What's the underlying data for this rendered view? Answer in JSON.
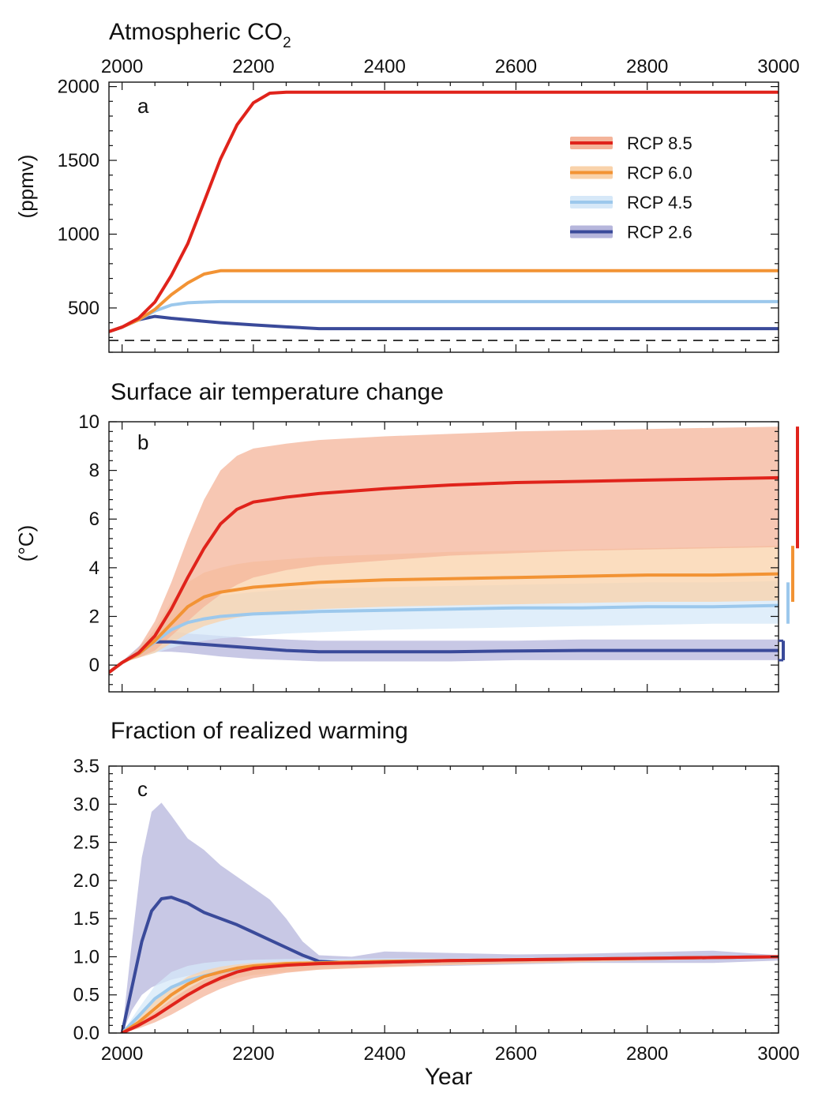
{
  "figure": {
    "xlabel": "Year",
    "x_ticks": [
      2000,
      2200,
      2400,
      2600,
      2800,
      3000
    ],
    "xlim": [
      1980,
      3000
    ]
  },
  "legend": {
    "placement": "top-right of panel a",
    "entries": [
      {
        "label": "RCP 8.5",
        "color": "#e0231b",
        "band_color": "#f4b49a"
      },
      {
        "label": "RCP 6.0",
        "color": "#f29334",
        "band_color": "#f9d2aa"
      },
      {
        "label": "RCP 4.5",
        "color": "#9cc8ec",
        "band_color": "#d6e8f8"
      },
      {
        "label": "RCP 2.6",
        "color": "#3a4a9a",
        "band_color": "#b6b6dc"
      }
    ]
  },
  "panels": [
    {
      "letter": "a",
      "title": "Atmospheric CO",
      "title_sub": "2",
      "ylabel": "(ppmv)"
    },
    {
      "letter": "b",
      "title": "Surface air temperature change",
      "ylabel": "(°C)"
    },
    {
      "letter": "c",
      "title": "Fraction of realized warming",
      "ylabel": ""
    }
  ],
  "chart_data": [
    {
      "type": "line",
      "title": "Atmospheric CO2",
      "ylabel": "(ppmv)",
      "xlim": [
        1980,
        3000
      ],
      "ylim": [
        200,
        2030
      ],
      "y_ticks": [
        500,
        1000,
        1500,
        2000
      ],
      "x_ticks_top": [
        2000,
        2200,
        2400,
        2600,
        2800,
        3000
      ],
      "reference_line": {
        "y": 280,
        "style": "dashed"
      },
      "series": [
        {
          "name": "RCP 8.5",
          "x": [
            1980,
            2000,
            2025,
            2050,
            2075,
            2100,
            2125,
            2150,
            2175,
            2200,
            2225,
            2250,
            2400,
            2600,
            2800,
            3000
          ],
          "y": [
            340,
            370,
            430,
            540,
            720,
            935,
            1220,
            1510,
            1740,
            1890,
            1955,
            1962,
            1962,
            1962,
            1962,
            1962
          ]
        },
        {
          "name": "RCP 6.0",
          "x": [
            1980,
            2000,
            2025,
            2050,
            2075,
            2100,
            2125,
            2150,
            2175,
            2200,
            2400,
            2600,
            2800,
            3000
          ],
          "y": [
            340,
            370,
            420,
            490,
            590,
            670,
            730,
            752,
            752,
            752,
            752,
            752,
            752,
            752
          ]
        },
        {
          "name": "RCP 4.5",
          "x": [
            1980,
            2000,
            2025,
            2050,
            2075,
            2100,
            2125,
            2150,
            2200,
            2400,
            2600,
            2800,
            3000
          ],
          "y": [
            340,
            370,
            420,
            480,
            520,
            535,
            540,
            543,
            543,
            543,
            543,
            543,
            543
          ]
        },
        {
          "name": "RCP 2.6",
          "x": [
            1980,
            2000,
            2025,
            2050,
            2075,
            2100,
            2150,
            2200,
            2250,
            2300,
            2400,
            2600,
            2800,
            3000
          ],
          "y": [
            340,
            370,
            420,
            443,
            430,
            420,
            400,
            385,
            372,
            360,
            360,
            360,
            360,
            360
          ]
        }
      ]
    },
    {
      "type": "line",
      "title": "Surface air temperature change",
      "ylabel": "(°C)",
      "xlim": [
        1980,
        3000
      ],
      "ylim": [
        -1.1,
        10
      ],
      "y_ticks": [
        0,
        2,
        4,
        6,
        8,
        10
      ],
      "series": [
        {
          "name": "RCP 8.5",
          "x": [
            1980,
            2000,
            2025,
            2050,
            2075,
            2100,
            2125,
            2150,
            2175,
            2200,
            2250,
            2300,
            2400,
            2500,
            2600,
            2700,
            2800,
            2900,
            3000
          ],
          "y": [
            -0.3,
            0.1,
            0.5,
            1.2,
            2.3,
            3.6,
            4.8,
            5.8,
            6.4,
            6.7,
            6.9,
            7.05,
            7.25,
            7.4,
            7.5,
            7.55,
            7.6,
            7.65,
            7.7
          ],
          "low": [
            -0.3,
            0.1,
            0.3,
            0.6,
            1.2,
            1.8,
            2.4,
            2.9,
            3.3,
            3.6,
            3.9,
            4.1,
            4.3,
            4.5,
            4.6,
            4.7,
            4.75,
            4.8,
            4.85
          ],
          "high": [
            -0.3,
            0.15,
            0.7,
            1.8,
            3.4,
            5.2,
            6.8,
            8.0,
            8.6,
            8.9,
            9.1,
            9.25,
            9.4,
            9.5,
            9.6,
            9.65,
            9.7,
            9.75,
            9.8
          ]
        },
        {
          "name": "RCP 6.0",
          "x": [
            1980,
            2000,
            2025,
            2050,
            2075,
            2100,
            2125,
            2150,
            2175,
            2200,
            2250,
            2300,
            2400,
            2500,
            2600,
            2700,
            2800,
            2900,
            3000
          ],
          "y": [
            -0.3,
            0.1,
            0.45,
            1.0,
            1.7,
            2.4,
            2.8,
            3.0,
            3.1,
            3.2,
            3.3,
            3.4,
            3.5,
            3.55,
            3.6,
            3.65,
            3.7,
            3.7,
            3.75
          ],
          "low": [
            -0.3,
            0.1,
            0.3,
            0.5,
            0.9,
            1.3,
            1.6,
            1.8,
            1.95,
            2.05,
            2.2,
            2.3,
            2.4,
            2.45,
            2.5,
            2.55,
            2.6,
            2.6,
            2.65
          ],
          "high": [
            -0.3,
            0.15,
            0.6,
            1.5,
            2.6,
            3.4,
            3.8,
            4.0,
            4.15,
            4.25,
            4.35,
            4.45,
            4.55,
            4.65,
            4.7,
            4.75,
            4.8,
            4.85,
            4.9
          ]
        },
        {
          "name": "RCP 4.5",
          "x": [
            1980,
            2000,
            2025,
            2050,
            2075,
            2100,
            2125,
            2150,
            2200,
            2250,
            2300,
            2400,
            2500,
            2600,
            2700,
            2800,
            2900,
            3000
          ],
          "y": [
            -0.3,
            0.1,
            0.45,
            0.95,
            1.45,
            1.75,
            1.9,
            2.0,
            2.1,
            2.15,
            2.2,
            2.25,
            2.3,
            2.35,
            2.35,
            2.4,
            2.4,
            2.45
          ],
          "low": [
            -0.3,
            0.1,
            0.3,
            0.5,
            0.7,
            0.9,
            1.0,
            1.1,
            1.2,
            1.3,
            1.35,
            1.45,
            1.5,
            1.55,
            1.6,
            1.65,
            1.7,
            1.7
          ],
          "high": [
            -0.3,
            0.15,
            0.6,
            1.3,
            2.0,
            2.45,
            2.7,
            2.85,
            3.0,
            3.1,
            3.15,
            3.2,
            3.25,
            3.3,
            3.35,
            3.4,
            3.4,
            3.45
          ]
        },
        {
          "name": "RCP 2.6",
          "x": [
            1980,
            2000,
            2025,
            2050,
            2075,
            2100,
            2150,
            2200,
            2250,
            2300,
            2400,
            2500,
            2600,
            2700,
            2800,
            2900,
            3000
          ],
          "y": [
            -0.3,
            0.1,
            0.5,
            0.95,
            0.95,
            0.9,
            0.8,
            0.7,
            0.6,
            0.55,
            0.55,
            0.55,
            0.58,
            0.6,
            0.6,
            0.6,
            0.6
          ],
          "low": [
            -0.3,
            0.1,
            0.3,
            0.55,
            0.55,
            0.5,
            0.35,
            0.25,
            0.2,
            0.15,
            0.15,
            0.15,
            0.2,
            0.2,
            0.2,
            0.2,
            0.2
          ],
          "high": [
            -0.3,
            0.15,
            0.75,
            1.4,
            1.4,
            1.3,
            1.2,
            1.1,
            1.05,
            1.0,
            1.0,
            1.0,
            1.0,
            1.05,
            1.05,
            1.05,
            1.05
          ]
        }
      ],
      "range_bars": [
        {
          "name": "RCP 8.5",
          "low": 4.8,
          "high": 9.8
        },
        {
          "name": "RCP 6.0",
          "low": 2.6,
          "high": 4.9
        },
        {
          "name": "RCP 4.5",
          "low": 1.7,
          "high": 3.4
        },
        {
          "name": "RCP 2.6",
          "low": 0.2,
          "high": 1.0
        }
      ]
    },
    {
      "type": "line",
      "title": "Fraction of realized warming",
      "xlabel": "Year",
      "xlim": [
        1980,
        3000
      ],
      "ylim": [
        0,
        3.5
      ],
      "y_ticks": [
        0.0,
        0.5,
        1.0,
        1.5,
        2.0,
        2.5,
        3.0,
        3.5
      ],
      "series": [
        {
          "name": "RCP 8.5",
          "x": [
            2000,
            2025,
            2050,
            2075,
            2100,
            2125,
            2150,
            2175,
            2200,
            2250,
            2300,
            2400,
            2500,
            2600,
            2700,
            2800,
            2900,
            3000
          ],
          "y": [
            0.0,
            0.1,
            0.22,
            0.36,
            0.5,
            0.62,
            0.72,
            0.8,
            0.85,
            0.89,
            0.91,
            0.93,
            0.95,
            0.96,
            0.97,
            0.98,
            0.99,
            1.0
          ],
          "low": [
            0.0,
            0.06,
            0.14,
            0.24,
            0.36,
            0.48,
            0.58,
            0.66,
            0.72,
            0.79,
            0.83,
            0.87,
            0.9,
            0.92,
            0.94,
            0.96,
            0.97,
            0.98
          ],
          "high": [
            0.0,
            0.13,
            0.28,
            0.44,
            0.58,
            0.7,
            0.79,
            0.85,
            0.9,
            0.93,
            0.94,
            0.95,
            0.96,
            0.97,
            0.98,
            0.99,
            1.0,
            1.0
          ]
        },
        {
          "name": "RCP 6.0",
          "x": [
            2000,
            2025,
            2050,
            2075,
            2100,
            2125,
            2150,
            2175,
            2200,
            2250,
            2300,
            2400,
            2500,
            2600,
            2700,
            2800,
            2900,
            3000
          ],
          "y": [
            0.0,
            0.14,
            0.32,
            0.5,
            0.64,
            0.74,
            0.8,
            0.85,
            0.88,
            0.91,
            0.92,
            0.94,
            0.95,
            0.96,
            0.97,
            0.98,
            0.99,
            1.0
          ],
          "low": [
            0.0,
            0.09,
            0.22,
            0.37,
            0.5,
            0.6,
            0.67,
            0.72,
            0.76,
            0.8,
            0.83,
            0.86,
            0.89,
            0.91,
            0.93,
            0.95,
            0.97,
            0.98
          ],
          "high": [
            0.0,
            0.2,
            0.42,
            0.6,
            0.74,
            0.82,
            0.87,
            0.9,
            0.92,
            0.94,
            0.95,
            0.96,
            0.97,
            0.98,
            0.98,
            0.99,
            1.0,
            1.0
          ]
        },
        {
          "name": "RCP 4.5",
          "x": [
            2000,
            2025,
            2050,
            2075,
            2100,
            2125,
            2150,
            2175,
            2200,
            2250,
            2300,
            2400,
            2500,
            2600,
            2700,
            2800,
            2900,
            3000
          ],
          "y": [
            0.0,
            0.22,
            0.45,
            0.6,
            0.69,
            0.75,
            0.8,
            0.84,
            0.87,
            0.9,
            0.92,
            0.94,
            0.95,
            0.96,
            0.97,
            0.98,
            0.99,
            1.0
          ],
          "low": [
            0.0,
            0.14,
            0.3,
            0.44,
            0.55,
            0.63,
            0.69,
            0.74,
            0.78,
            0.83,
            0.86,
            0.89,
            0.91,
            0.93,
            0.95,
            0.96,
            0.98,
            0.99
          ],
          "high": [
            0.0,
            0.32,
            0.62,
            0.8,
            0.88,
            0.92,
            0.94,
            0.95,
            0.96,
            0.97,
            0.97,
            0.98,
            0.98,
            0.99,
            0.99,
            1.0,
            1.0,
            1.0
          ]
        },
        {
          "name": "RCP 2.6",
          "x": [
            2000,
            2015,
            2030,
            2045,
            2060,
            2075,
            2100,
            2125,
            2150,
            2175,
            2200,
            2225,
            2250,
            2275,
            2300,
            2350,
            2400,
            2500,
            2600,
            2700,
            2800,
            2900,
            3000
          ],
          "y": [
            0.0,
            0.6,
            1.2,
            1.6,
            1.76,
            1.78,
            1.7,
            1.58,
            1.5,
            1.42,
            1.32,
            1.22,
            1.12,
            1.02,
            0.94,
            0.92,
            0.93,
            0.95,
            0.96,
            0.97,
            0.98,
            0.99,
            1.0
          ],
          "low": [
            0.0,
            0.3,
            0.5,
            0.6,
            0.65,
            0.7,
            0.75,
            0.78,
            0.8,
            0.82,
            0.84,
            0.85,
            0.86,
            0.86,
            0.87,
            0.86,
            0.87,
            0.88,
            0.9,
            0.92,
            0.92,
            0.92,
            0.95
          ],
          "high": [
            0.0,
            1.2,
            2.3,
            2.9,
            3.02,
            2.85,
            2.55,
            2.4,
            2.2,
            2.05,
            1.9,
            1.75,
            1.5,
            1.2,
            1.02,
            1.0,
            1.07,
            1.05,
            1.03,
            1.04,
            1.06,
            1.08,
            1.02
          ]
        }
      ]
    }
  ]
}
